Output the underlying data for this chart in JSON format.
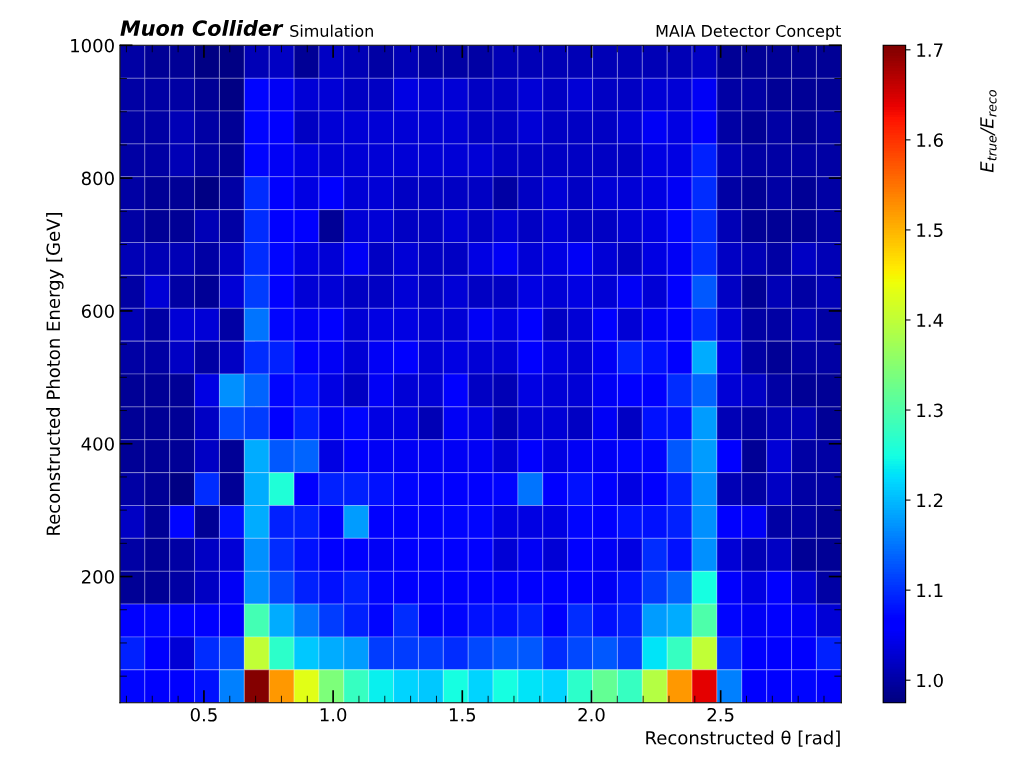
{
  "chart_data": {
    "type": "heatmap",
    "title": "Muon Collider",
    "subtitle": "Simulation",
    "annotations": [
      "MAIA Detector Concept"
    ],
    "xlabel": "Reconstructed θ [rad]",
    "ylabel": "Reconstructed Photon Energy [GeV]",
    "clabel": "E$_{true}$/E$_{reco}$",
    "xlim": [
      0.175,
      2.967
    ],
    "ylim": [
      10,
      1000
    ],
    "xticks": [
      {
        "value": 0.2,
        "label": null
      },
      {
        "value": 0.3,
        "label": null
      },
      {
        "value": 0.4,
        "label": null
      },
      0.5,
      {
        "value": 0.6,
        "label": null
      },
      {
        "value": 0.7,
        "label": null
      },
      {
        "value": 0.8,
        "label": null
      },
      {
        "value": 0.9,
        "label": null
      },
      {
        "value": 1.0,
        "label": "1.0"
      },
      {
        "value": 1.1,
        "label": null
      },
      {
        "value": 1.2,
        "label": null
      },
      {
        "value": 1.3,
        "label": null
      },
      {
        "value": 1.4,
        "label": null
      },
      1.5,
      {
        "value": 1.6,
        "label": null
      },
      {
        "value": 1.7,
        "label": null
      },
      {
        "value": 1.8,
        "label": null
      },
      {
        "value": 1.9,
        "label": null
      },
      {
        "value": 2.0,
        "label": "2.0"
      },
      {
        "value": 2.1,
        "label": null
      },
      {
        "value": 2.2,
        "label": null
      },
      {
        "value": 2.3,
        "label": null
      },
      {
        "value": 2.4,
        "label": null
      },
      2.5,
      {
        "value": 2.6,
        "label": null
      },
      {
        "value": 2.7,
        "label": null
      },
      {
        "value": 2.8,
        "label": null
      },
      {
        "value": 2.9,
        "label": null
      }
    ],
    "yticks": [
      {
        "value": 50,
        "label": null
      },
      {
        "value": 100,
        "label": null
      },
      {
        "value": 150,
        "label": null
      },
      200,
      {
        "value": 250,
        "label": null
      },
      {
        "value": 300,
        "label": null
      },
      {
        "value": 350,
        "label": null
      },
      400,
      {
        "value": 450,
        "label": null
      },
      {
        "value": 500,
        "label": null
      },
      {
        "value": 550,
        "label": null
      },
      600,
      {
        "value": 650,
        "label": null
      },
      {
        "value": 700,
        "label": null
      },
      {
        "value": 750,
        "label": null
      },
      800,
      {
        "value": 850,
        "label": null
      },
      {
        "value": 900,
        "label": null
      },
      {
        "value": 950,
        "label": null
      },
      1000
    ],
    "clim": [
      0.975,
      1.705
    ],
    "cticks": [
      {
        "value": 1.0,
        "label": "1.0"
      },
      1.1,
      1.2,
      1.3,
      1.4,
      1.5,
      1.6,
      1.7
    ],
    "cells": [
      [
        1.0,
        0.99,
        0.99,
        0.98,
        0.98,
        1.01,
        1.02,
        0.99,
        1.02,
        1.01,
        1.0,
        1.01,
        1.0,
        1.0,
        1.0,
        1.01,
        1.01,
        1.01,
        1.01,
        1.01,
        1.01,
        1.01,
        1.01,
        1.02,
        0.99,
        0.99,
        0.99,
        0.99,
        0.99
      ],
      [
        1.0,
        1.0,
        1.0,
        0.99,
        0.98,
        1.07,
        1.05,
        1.03,
        1.03,
        1.02,
        1.02,
        1.04,
        1.03,
        1.03,
        1.02,
        1.02,
        1.03,
        1.02,
        1.03,
        1.02,
        1.02,
        1.03,
        1.03,
        1.05,
        1.0,
        1.0,
        0.99,
        0.99,
        0.99
      ],
      [
        1.0,
        1.0,
        1.01,
        1.0,
        0.99,
        1.07,
        1.06,
        1.02,
        1.03,
        1.03,
        1.03,
        1.03,
        1.03,
        1.03,
        1.02,
        1.02,
        1.03,
        1.02,
        1.02,
        1.02,
        1.03,
        1.05,
        1.04,
        1.06,
        1.0,
        0.99,
        1.0,
        0.99,
        1.0
      ],
      [
        1.0,
        1.0,
        1.01,
        1.0,
        0.99,
        1.07,
        1.05,
        1.04,
        1.03,
        1.03,
        1.03,
        1.03,
        1.03,
        1.03,
        1.03,
        1.02,
        1.02,
        1.02,
        1.02,
        1.02,
        1.02,
        1.04,
        1.04,
        1.09,
        1.01,
        1.0,
        1.0,
        1.0,
        1.0
      ],
      [
        1.0,
        0.99,
        0.99,
        0.98,
        1.0,
        1.1,
        1.06,
        1.04,
        1.06,
        1.03,
        1.03,
        1.02,
        1.02,
        1.02,
        1.02,
        1.0,
        1.02,
        1.03,
        1.02,
        1.03,
        1.03,
        1.04,
        1.05,
        1.1,
        1.0,
        0.99,
        1.0,
        0.99,
        1.0
      ],
      [
        1.0,
        0.99,
        0.99,
        1.01,
        1.0,
        1.1,
        1.06,
        1.06,
        0.99,
        1.03,
        1.03,
        1.02,
        1.02,
        1.03,
        1.02,
        1.03,
        1.02,
        1.03,
        1.02,
        1.02,
        1.03,
        1.04,
        1.07,
        1.1,
        1.01,
        0.99,
        0.99,
        0.99,
        1.0
      ],
      [
        1.01,
        1.01,
        1.01,
        1.0,
        1.02,
        1.1,
        1.07,
        1.04,
        1.03,
        1.05,
        1.02,
        1.03,
        1.02,
        1.02,
        1.04,
        1.05,
        1.03,
        1.04,
        1.05,
        1.03,
        1.02,
        1.04,
        1.05,
        1.1,
        1.02,
        1.01,
        1.0,
        1.02,
        1.01
      ],
      [
        1.0,
        1.03,
        1.0,
        0.99,
        1.03,
        1.11,
        1.06,
        1.03,
        1.03,
        1.02,
        1.02,
        1.03,
        1.02,
        1.03,
        1.02,
        1.02,
        1.04,
        1.03,
        1.04,
        1.03,
        1.05,
        1.03,
        1.06,
        1.13,
        1.02,
        0.99,
        1.01,
        1.0,
        1.01
      ],
      [
        1.01,
        1.0,
        1.03,
        1.03,
        1.0,
        1.15,
        1.07,
        1.05,
        1.06,
        1.03,
        1.04,
        1.04,
        1.03,
        1.03,
        1.05,
        1.04,
        1.06,
        1.02,
        1.03,
        1.06,
        1.03,
        1.05,
        1.06,
        1.1,
        1.03,
        1.0,
        1.0,
        1.01,
        1.0
      ],
      [
        1.0,
        1.0,
        1.02,
        1.0,
        1.02,
        1.1,
        1.09,
        1.06,
        1.05,
        1.03,
        1.05,
        1.06,
        1.03,
        1.04,
        1.03,
        1.03,
        1.06,
        1.04,
        1.03,
        1.05,
        1.09,
        1.08,
        1.06,
        1.19,
        1.04,
        1.0,
        0.99,
        1.0,
        1.0
      ],
      [
        0.99,
        0.99,
        0.99,
        1.04,
        1.17,
        1.14,
        1.07,
        1.08,
        1.04,
        1.02,
        1.05,
        1.03,
        1.03,
        1.06,
        1.02,
        1.01,
        1.04,
        1.03,
        1.03,
        1.05,
        1.06,
        1.06,
        1.1,
        1.14,
        1.03,
        1.02,
        1.0,
        0.99,
        0.99
      ],
      [
        0.99,
        0.99,
        0.99,
        1.02,
        1.12,
        1.11,
        1.06,
        1.09,
        1.05,
        1.07,
        1.04,
        1.04,
        1.01,
        1.05,
        1.04,
        1.01,
        1.03,
        1.03,
        1.02,
        1.05,
        1.02,
        1.08,
        1.08,
        1.18,
        1.01,
        1.0,
        1.01,
        1.01,
        0.99
      ],
      [
        0.99,
        0.99,
        0.99,
        1.02,
        0.99,
        1.19,
        1.13,
        1.14,
        1.04,
        1.06,
        1.05,
        1.05,
        1.05,
        1.05,
        1.05,
        1.03,
        1.06,
        1.04,
        1.05,
        1.05,
        1.07,
        1.07,
        1.13,
        1.18,
        1.06,
        0.99,
        1.03,
        1.0,
        1.0
      ],
      [
        1.0,
        0.99,
        0.98,
        1.1,
        0.99,
        1.19,
        1.26,
        1.06,
        1.09,
        1.09,
        1.08,
        1.07,
        1.06,
        1.06,
        1.06,
        1.07,
        1.15,
        1.06,
        1.08,
        1.06,
        1.04,
        1.06,
        1.09,
        1.17,
        1.01,
        1.0,
        1.02,
        1.0,
        1.0
      ],
      [
        1.02,
        0.99,
        1.07,
        0.99,
        1.08,
        1.19,
        1.09,
        1.09,
        1.06,
        1.18,
        1.06,
        1.06,
        1.06,
        1.07,
        1.07,
        1.04,
        1.04,
        1.04,
        1.07,
        1.06,
        1.08,
        1.08,
        1.09,
        1.17,
        1.06,
        1.05,
        1.0,
        1.0,
        0.99
      ],
      [
        1.0,
        0.99,
        1.0,
        1.02,
        1.03,
        1.17,
        1.1,
        1.08,
        1.06,
        1.06,
        1.05,
        1.06,
        1.06,
        1.06,
        1.06,
        1.03,
        1.05,
        1.03,
        1.06,
        1.05,
        1.04,
        1.1,
        1.08,
        1.17,
        1.03,
        1.01,
        1.02,
        0.99,
        0.99
      ],
      [
        0.99,
        0.99,
        1.0,
        1.02,
        1.05,
        1.17,
        1.12,
        1.09,
        1.08,
        1.09,
        1.07,
        1.06,
        1.06,
        1.06,
        1.06,
        1.06,
        1.06,
        1.06,
        1.06,
        1.05,
        1.08,
        1.11,
        1.14,
        1.25,
        1.06,
        1.04,
        1.06,
        1.03,
        1.0
      ],
      [
        1.06,
        1.07,
        1.06,
        1.06,
        1.06,
        1.29,
        1.19,
        1.15,
        1.11,
        1.09,
        1.07,
        1.1,
        1.06,
        1.07,
        1.08,
        1.08,
        1.09,
        1.06,
        1.1,
        1.08,
        1.09,
        1.18,
        1.19,
        1.3,
        1.07,
        1.05,
        1.06,
        1.05,
        1.03
      ],
      [
        1.09,
        1.06,
        1.03,
        1.1,
        1.12,
        1.4,
        1.27,
        1.21,
        1.19,
        1.18,
        1.11,
        1.11,
        1.11,
        1.1,
        1.12,
        1.13,
        1.13,
        1.1,
        1.12,
        1.13,
        1.11,
        1.23,
        1.28,
        1.4,
        1.1,
        1.06,
        1.06,
        1.06,
        1.09
      ],
      [
        1.07,
        1.06,
        1.06,
        1.08,
        1.16,
        1.7,
        1.52,
        1.43,
        1.34,
        1.28,
        1.24,
        1.22,
        1.21,
        1.25,
        1.22,
        1.25,
        1.23,
        1.22,
        1.27,
        1.32,
        1.28,
        1.39,
        1.52,
        1.64,
        1.16,
        1.06,
        1.06,
        1.07,
        1.06
      ]
    ]
  }
}
